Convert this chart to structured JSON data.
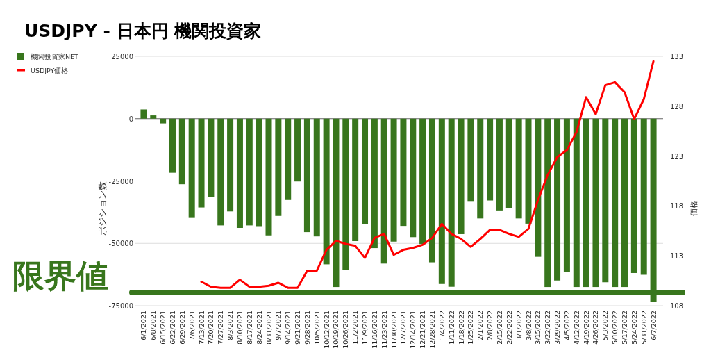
{
  "chart_data": {
    "type": "bar",
    "title": "USDJPY - 日本円 機関投資家",
    "ylabel": "ポジション数",
    "y2label": "価格",
    "categories": [
      "6/1/2021",
      "6/8/2021",
      "6/15/2021",
      "6/22/2021",
      "6/29/2021",
      "7/6/2021",
      "7/13/2021",
      "7/20/2021",
      "7/27/2021",
      "8/3/2021",
      "8/10/2021",
      "8/17/2021",
      "8/24/2021",
      "8/31/2021",
      "9/7/2021",
      "9/14/2021",
      "9/21/2021",
      "9/28/2021",
      "10/5/2021",
      "10/12/2021",
      "10/19/2021",
      "10/26/2021",
      "11/2/2021",
      "11/9/2021",
      "11/16/2021",
      "11/23/2021",
      "11/30/2021",
      "12/7/2021",
      "12/14/2021",
      "12/21/2021",
      "12/28/2021",
      "1/4/2022",
      "1/11/2022",
      "1/18/2022",
      "1/25/2022",
      "2/1/2022",
      "2/8/2022",
      "2/15/2022",
      "2/22/2022",
      "3/1/2022",
      "3/8/2022",
      "3/15/2022",
      "3/22/2022",
      "3/29/2022",
      "4/5/2022",
      "4/12/2022",
      "4/19/2022",
      "4/26/2022",
      "5/3/2022",
      "5/10/2022",
      "5/17/2022",
      "5/24/2022",
      "5/31/2022",
      "6/7/2022"
    ],
    "series": [
      {
        "name": "機関投資家NET",
        "color": "#38761d",
        "values": [
          3700,
          1300,
          -1900,
          -21700,
          -26300,
          -39800,
          -35600,
          -31400,
          -42800,
          -37200,
          -43800,
          -42800,
          -43100,
          -46800,
          -39000,
          -32600,
          -25200,
          -45500,
          -47200,
          -58400,
          -67500,
          -60700,
          -49100,
          -42400,
          -51900,
          -58100,
          -49300,
          -43000,
          -47500,
          -50300,
          -57600,
          -66300,
          -67400,
          -46300,
          -33300,
          -40000,
          -32800,
          -36800,
          -35800,
          -40000,
          -42100,
          -55400,
          -67500,
          -64900,
          -61400,
          -67500,
          -67500,
          -67500,
          -65600,
          -67500,
          -67500,
          -61900,
          -62600,
          -73400
        ]
      },
      {
        "name": "USDJPY価格",
        "type": "line",
        "axis": "y2",
        "color": "#ff0000",
        "values": [
          null,
          null,
          null,
          null,
          null,
          null,
          110.4,
          109.9,
          109.8,
          109.8,
          110.6,
          109.9,
          109.9,
          110.0,
          110.3,
          109.8,
          109.8,
          111.5,
          111.5,
          113.6,
          114.5,
          114.2,
          114.0,
          112.8,
          114.8,
          115.2,
          113.1,
          113.6,
          113.8,
          114.1,
          114.8,
          116.2,
          115.2,
          114.7,
          113.9,
          114.7,
          115.6,
          115.6,
          115.2,
          114.9,
          115.7,
          118.6,
          121.1,
          122.9,
          123.6,
          125.4,
          128.9,
          127.2,
          130.1,
          130.4,
          129.4,
          126.7,
          128.7,
          132.5
        ]
      }
    ],
    "ylim": [
      -75000,
      25000
    ],
    "yticks": [
      25000,
      0,
      -25000,
      -50000,
      -75000
    ],
    "y2lim": [
      108,
      133
    ],
    "y2ticks": [
      133,
      128,
      123,
      118,
      113,
      108
    ],
    "grid": "y",
    "legend": "top left",
    "ref_lines": [
      {
        "axis": "y",
        "value": -69700,
        "label": "限界値",
        "color": "#38761d"
      }
    ]
  }
}
